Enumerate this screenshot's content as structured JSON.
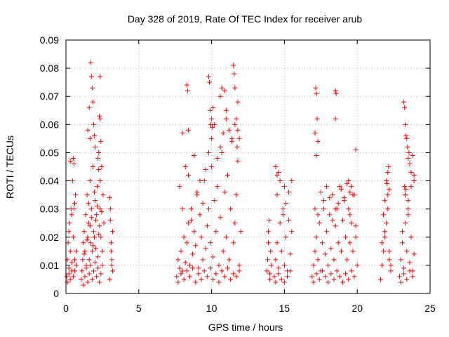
{
  "chart_data": {
    "type": "scatter",
    "title": "Day 328 of 2019, Rate Of TEC Index for receiver arub",
    "xlabel": "GPS time / hours",
    "ylabel": "ROTI / TECUs",
    "xlim": [
      0,
      25
    ],
    "ylim": [
      0,
      0.09
    ],
    "xticks": [
      0,
      5,
      10,
      15,
      20,
      25
    ],
    "xtick_labels": [
      "0",
      "5",
      "10",
      "15",
      "20",
      "25"
    ],
    "yticks": [
      0,
      0.01,
      0.02,
      0.03,
      0.04,
      0.05,
      0.06,
      0.07,
      0.08,
      0.09
    ],
    "ytick_labels": [
      "0",
      "0.01",
      "0.02",
      "0.03",
      "0.04",
      "0.05",
      "0.06",
      "0.07",
      "0.08",
      "0.09"
    ],
    "grid": true,
    "marker": "plus",
    "color": "#ff0000",
    "series": [
      {
        "x": [
          0.05,
          0.1,
          0.15,
          0.2,
          0.25,
          0.3,
          0.35,
          0.4,
          0.45,
          0.5,
          0.55,
          0.6,
          0.65,
          0.7,
          0.1,
          0.2,
          0.3,
          0.4,
          0.5,
          0.6,
          0.7,
          0.2,
          0.4,
          0.6,
          0.3,
          0.5,
          0.55,
          1.05,
          1.1,
          1.15,
          1.2,
          1.25,
          1.3,
          1.35,
          1.4,
          1.45,
          1.5,
          1.55,
          1.6,
          1.65,
          1.7,
          1.75,
          1.8,
          1.85,
          1.9,
          1.95,
          2.0,
          2.05,
          2.1,
          2.15,
          2.2,
          2.25,
          2.3,
          2.35,
          2.4,
          2.45,
          2.5,
          2.55,
          2.6,
          1.2,
          1.3,
          1.4,
          1.5,
          1.6,
          1.7,
          1.8,
          1.9,
          2.0,
          2.1,
          2.2,
          2.3,
          2.4,
          2.5,
          1.25,
          1.45,
          1.65,
          1.85,
          2.05,
          2.25,
          2.45,
          1.55,
          1.75,
          1.95,
          2.15,
          2.35,
          1.5,
          1.6,
          1.65,
          1.7,
          1.75,
          1.8,
          1.85,
          1.9,
          2.3,
          2.35,
          2.4,
          2.35,
          1.95,
          2.0,
          2.2,
          2.25,
          3.0,
          3.05,
          3.1,
          3.15,
          3.2,
          3.0,
          3.1,
          3.2,
          3.05,
          3.15,
          7.6,
          7.7,
          7.8,
          7.9,
          8.0,
          8.1,
          8.2,
          8.3,
          8.4,
          8.5,
          8.6,
          8.7,
          8.8,
          8.9,
          9.0,
          9.1,
          9.2,
          9.3,
          9.4,
          9.5,
          9.6,
          9.7,
          9.8,
          9.9,
          10.0,
          10.1,
          10.2,
          10.3,
          10.4,
          10.5,
          10.6,
          10.7,
          10.8,
          10.9,
          11.0,
          11.1,
          11.2,
          11.3,
          11.4,
          11.5,
          11.6,
          11.7,
          11.8,
          11.9,
          12.0,
          7.7,
          7.9,
          8.1,
          8.3,
          8.5,
          8.7,
          8.9,
          9.1,
          9.3,
          9.5,
          9.7,
          9.9,
          10.1,
          10.3,
          10.5,
          10.7,
          10.9,
          11.1,
          11.3,
          11.5,
          11.7,
          11.9,
          7.8,
          8.0,
          8.2,
          8.4,
          8.6,
          8.8,
          9.0,
          9.2,
          9.4,
          9.6,
          9.8,
          10.0,
          10.2,
          10.4,
          10.6,
          10.8,
          11.0,
          11.2,
          11.4,
          11.6,
          11.8,
          8.3,
          8.35,
          8.4,
          9.8,
          9.85,
          9.9,
          10.0,
          10.1,
          10.6,
          10.7,
          10.9,
          11.0,
          11.5,
          11.55,
          11.6,
          11.7,
          11.8,
          11.9,
          8.0,
          9.95,
          10.05,
          11.75,
          13.8,
          13.85,
          13.9,
          13.95,
          14.0,
          14.05,
          14.1,
          13.9,
          14.0,
          14.3,
          14.4,
          14.5,
          14.6,
          14.7,
          14.8,
          14.9,
          15.0,
          15.1,
          15.2,
          15.3,
          15.4,
          15.5,
          14.4,
          14.6,
          14.8,
          15.0,
          15.2,
          15.4,
          14.5,
          14.7,
          14.9,
          15.1,
          15.3,
          14.6,
          14.4,
          14.5,
          15.0,
          15.5,
          16.9,
          17.0,
          17.1,
          17.2,
          17.3,
          17.4,
          17.5,
          17.6,
          17.7,
          17.8,
          17.9,
          18.0,
          18.1,
          18.2,
          18.3,
          18.4,
          18.5,
          18.6,
          18.7,
          18.8,
          18.9,
          19.0,
          19.1,
          19.2,
          19.3,
          19.4,
          19.5,
          19.6,
          19.7,
          19.8,
          19.9,
          20.0,
          17.0,
          17.2,
          17.4,
          17.6,
          17.8,
          18.0,
          18.2,
          18.4,
          18.6,
          18.8,
          19.0,
          19.2,
          19.4,
          19.6,
          19.8,
          17.1,
          17.3,
          17.5,
          17.7,
          17.9,
          18.1,
          18.3,
          18.5,
          18.7,
          18.9,
          19.1,
          19.3,
          19.5,
          19.7,
          19.9,
          17.15,
          17.2,
          17.25,
          17.1,
          17.3,
          18.5,
          18.55,
          18.5,
          19.9,
          17.2,
          19.4,
          19.6,
          19.5,
          21.6,
          21.7,
          21.8,
          21.9,
          22.0,
          22.1,
          22.2,
          22.3,
          21.7,
          21.9,
          22.1,
          22.3,
          21.8,
          22.0,
          22.2,
          21.9,
          22.1,
          22.05,
          22.15,
          22.2,
          22.9,
          23.0,
          23.1,
          23.2,
          23.3,
          23.4,
          23.5,
          23.6,
          23.7,
          23.8,
          23.9,
          23.0,
          23.2,
          23.4,
          23.6,
          23.8,
          23.1,
          23.3,
          23.5,
          23.7,
          23.9,
          23.2,
          23.25,
          23.3,
          23.35,
          23.4,
          23.45,
          23.5,
          23.55,
          23.6,
          23.7,
          23.8,
          23.9,
          23.25,
          23.3,
          23.35,
          23.5
        ],
        "y": [
          0.006,
          0.012,
          0.018,
          0.009,
          0.025,
          0.015,
          0.03,
          0.008,
          0.04,
          0.02,
          0.046,
          0.012,
          0.035,
          0.01,
          0.004,
          0.007,
          0.005,
          0.011,
          0.006,
          0.008,
          0.015,
          0.022,
          0.028,
          0.032,
          0.047,
          0.048,
          0.03,
          0.005,
          0.008,
          0.012,
          0.018,
          0.022,
          0.015,
          0.028,
          0.01,
          0.035,
          0.02,
          0.025,
          0.012,
          0.04,
          0.018,
          0.03,
          0.015,
          0.045,
          0.022,
          0.02,
          0.033,
          0.016,
          0.028,
          0.038,
          0.013,
          0.05,
          0.024,
          0.03,
          0.02,
          0.045,
          0.015,
          0.035,
          0.025,
          0.003,
          0.006,
          0.009,
          0.004,
          0.007,
          0.01,
          0.005,
          0.008,
          0.011,
          0.006,
          0.009,
          0.004,
          0.007,
          0.01,
          0.014,
          0.019,
          0.024,
          0.017,
          0.026,
          0.021,
          0.029,
          0.032,
          0.027,
          0.036,
          0.031,
          0.04,
          0.058,
          0.066,
          0.055,
          0.082,
          0.077,
          0.073,
          0.068,
          0.06,
          0.063,
          0.077,
          0.054,
          0.062,
          0.056,
          0.052,
          0.048,
          0.044,
          0.034,
          0.03,
          0.018,
          0.012,
          0.008,
          0.005,
          0.015,
          0.022,
          0.026,
          0.01,
          0.006,
          0.012,
          0.009,
          0.015,
          0.008,
          0.02,
          0.011,
          0.018,
          0.025,
          0.01,
          0.03,
          0.014,
          0.022,
          0.017,
          0.035,
          0.009,
          0.028,
          0.02,
          0.012,
          0.04,
          0.016,
          0.024,
          0.03,
          0.018,
          0.045,
          0.013,
          0.033,
          0.022,
          0.038,
          0.01,
          0.027,
          0.05,
          0.015,
          0.036,
          0.02,
          0.042,
          0.012,
          0.03,
          0.055,
          0.018,
          0.025,
          0.035,
          0.047,
          0.01,
          0.022,
          0.004,
          0.007,
          0.005,
          0.008,
          0.006,
          0.009,
          0.004,
          0.007,
          0.005,
          0.008,
          0.006,
          0.009,
          0.005,
          0.007,
          0.004,
          0.008,
          0.006,
          0.009,
          0.005,
          0.007,
          0.006,
          0.008,
          0.038,
          0.03,
          0.045,
          0.042,
          0.026,
          0.049,
          0.036,
          0.04,
          0.032,
          0.044,
          0.05,
          0.055,
          0.06,
          0.048,
          0.052,
          0.057,
          0.062,
          0.058,
          0.054,
          0.06,
          0.068,
          0.074,
          0.072,
          0.058,
          0.077,
          0.075,
          0.065,
          0.062,
          0.066,
          0.07,
          0.073,
          0.072,
          0.065,
          0.081,
          0.078,
          0.073,
          0.062,
          0.058,
          0.055,
          0.057,
          0.06,
          0.059,
          0.052,
          0.008,
          0.012,
          0.018,
          0.026,
          0.005,
          0.015,
          0.01,
          0.022,
          0.007,
          0.006,
          0.012,
          0.018,
          0.009,
          0.025,
          0.015,
          0.03,
          0.01,
          0.02,
          0.008,
          0.026,
          0.014,
          0.022,
          0.004,
          0.007,
          0.005,
          0.004,
          0.006,
          0.008,
          0.035,
          0.04,
          0.028,
          0.032,
          0.036,
          0.043,
          0.045,
          0.042,
          0.038,
          0.04,
          0.006,
          0.01,
          0.015,
          0.02,
          0.012,
          0.025,
          0.008,
          0.018,
          0.03,
          0.014,
          0.022,
          0.01,
          0.028,
          0.016,
          0.035,
          0.012,
          0.024,
          0.03,
          0.018,
          0.038,
          0.015,
          0.026,
          0.033,
          0.02,
          0.012,
          0.03,
          0.018,
          0.025,
          0.015,
          0.035,
          0.02,
          0.01,
          0.004,
          0.007,
          0.005,
          0.008,
          0.006,
          0.004,
          0.007,
          0.005,
          0.008,
          0.006,
          0.004,
          0.007,
          0.005,
          0.008,
          0.006,
          0.03,
          0.028,
          0.036,
          0.033,
          0.038,
          0.034,
          0.026,
          0.03,
          0.032,
          0.037,
          0.034,
          0.039,
          0.028,
          0.035,
          0.024,
          0.073,
          0.071,
          0.062,
          0.057,
          0.054,
          0.072,
          0.071,
          0.062,
          0.051,
          0.049,
          0.04,
          0.038,
          0.036,
          0.005,
          0.01,
          0.015,
          0.02,
          0.025,
          0.03,
          0.012,
          0.008,
          0.018,
          0.022,
          0.035,
          0.01,
          0.028,
          0.04,
          0.015,
          0.033,
          0.043,
          0.039,
          0.045,
          0.037,
          0.006,
          0.012,
          0.018,
          0.009,
          0.025,
          0.015,
          0.03,
          0.011,
          0.02,
          0.008,
          0.014,
          0.004,
          0.007,
          0.005,
          0.008,
          0.006,
          0.022,
          0.035,
          0.028,
          0.038,
          0.042,
          0.068,
          0.066,
          0.06,
          0.056,
          0.055,
          0.052,
          0.048,
          0.05,
          0.046,
          0.043,
          0.049,
          0.04,
          0.038,
          0.035,
          0.037,
          0.033
        ]
      }
    ]
  }
}
